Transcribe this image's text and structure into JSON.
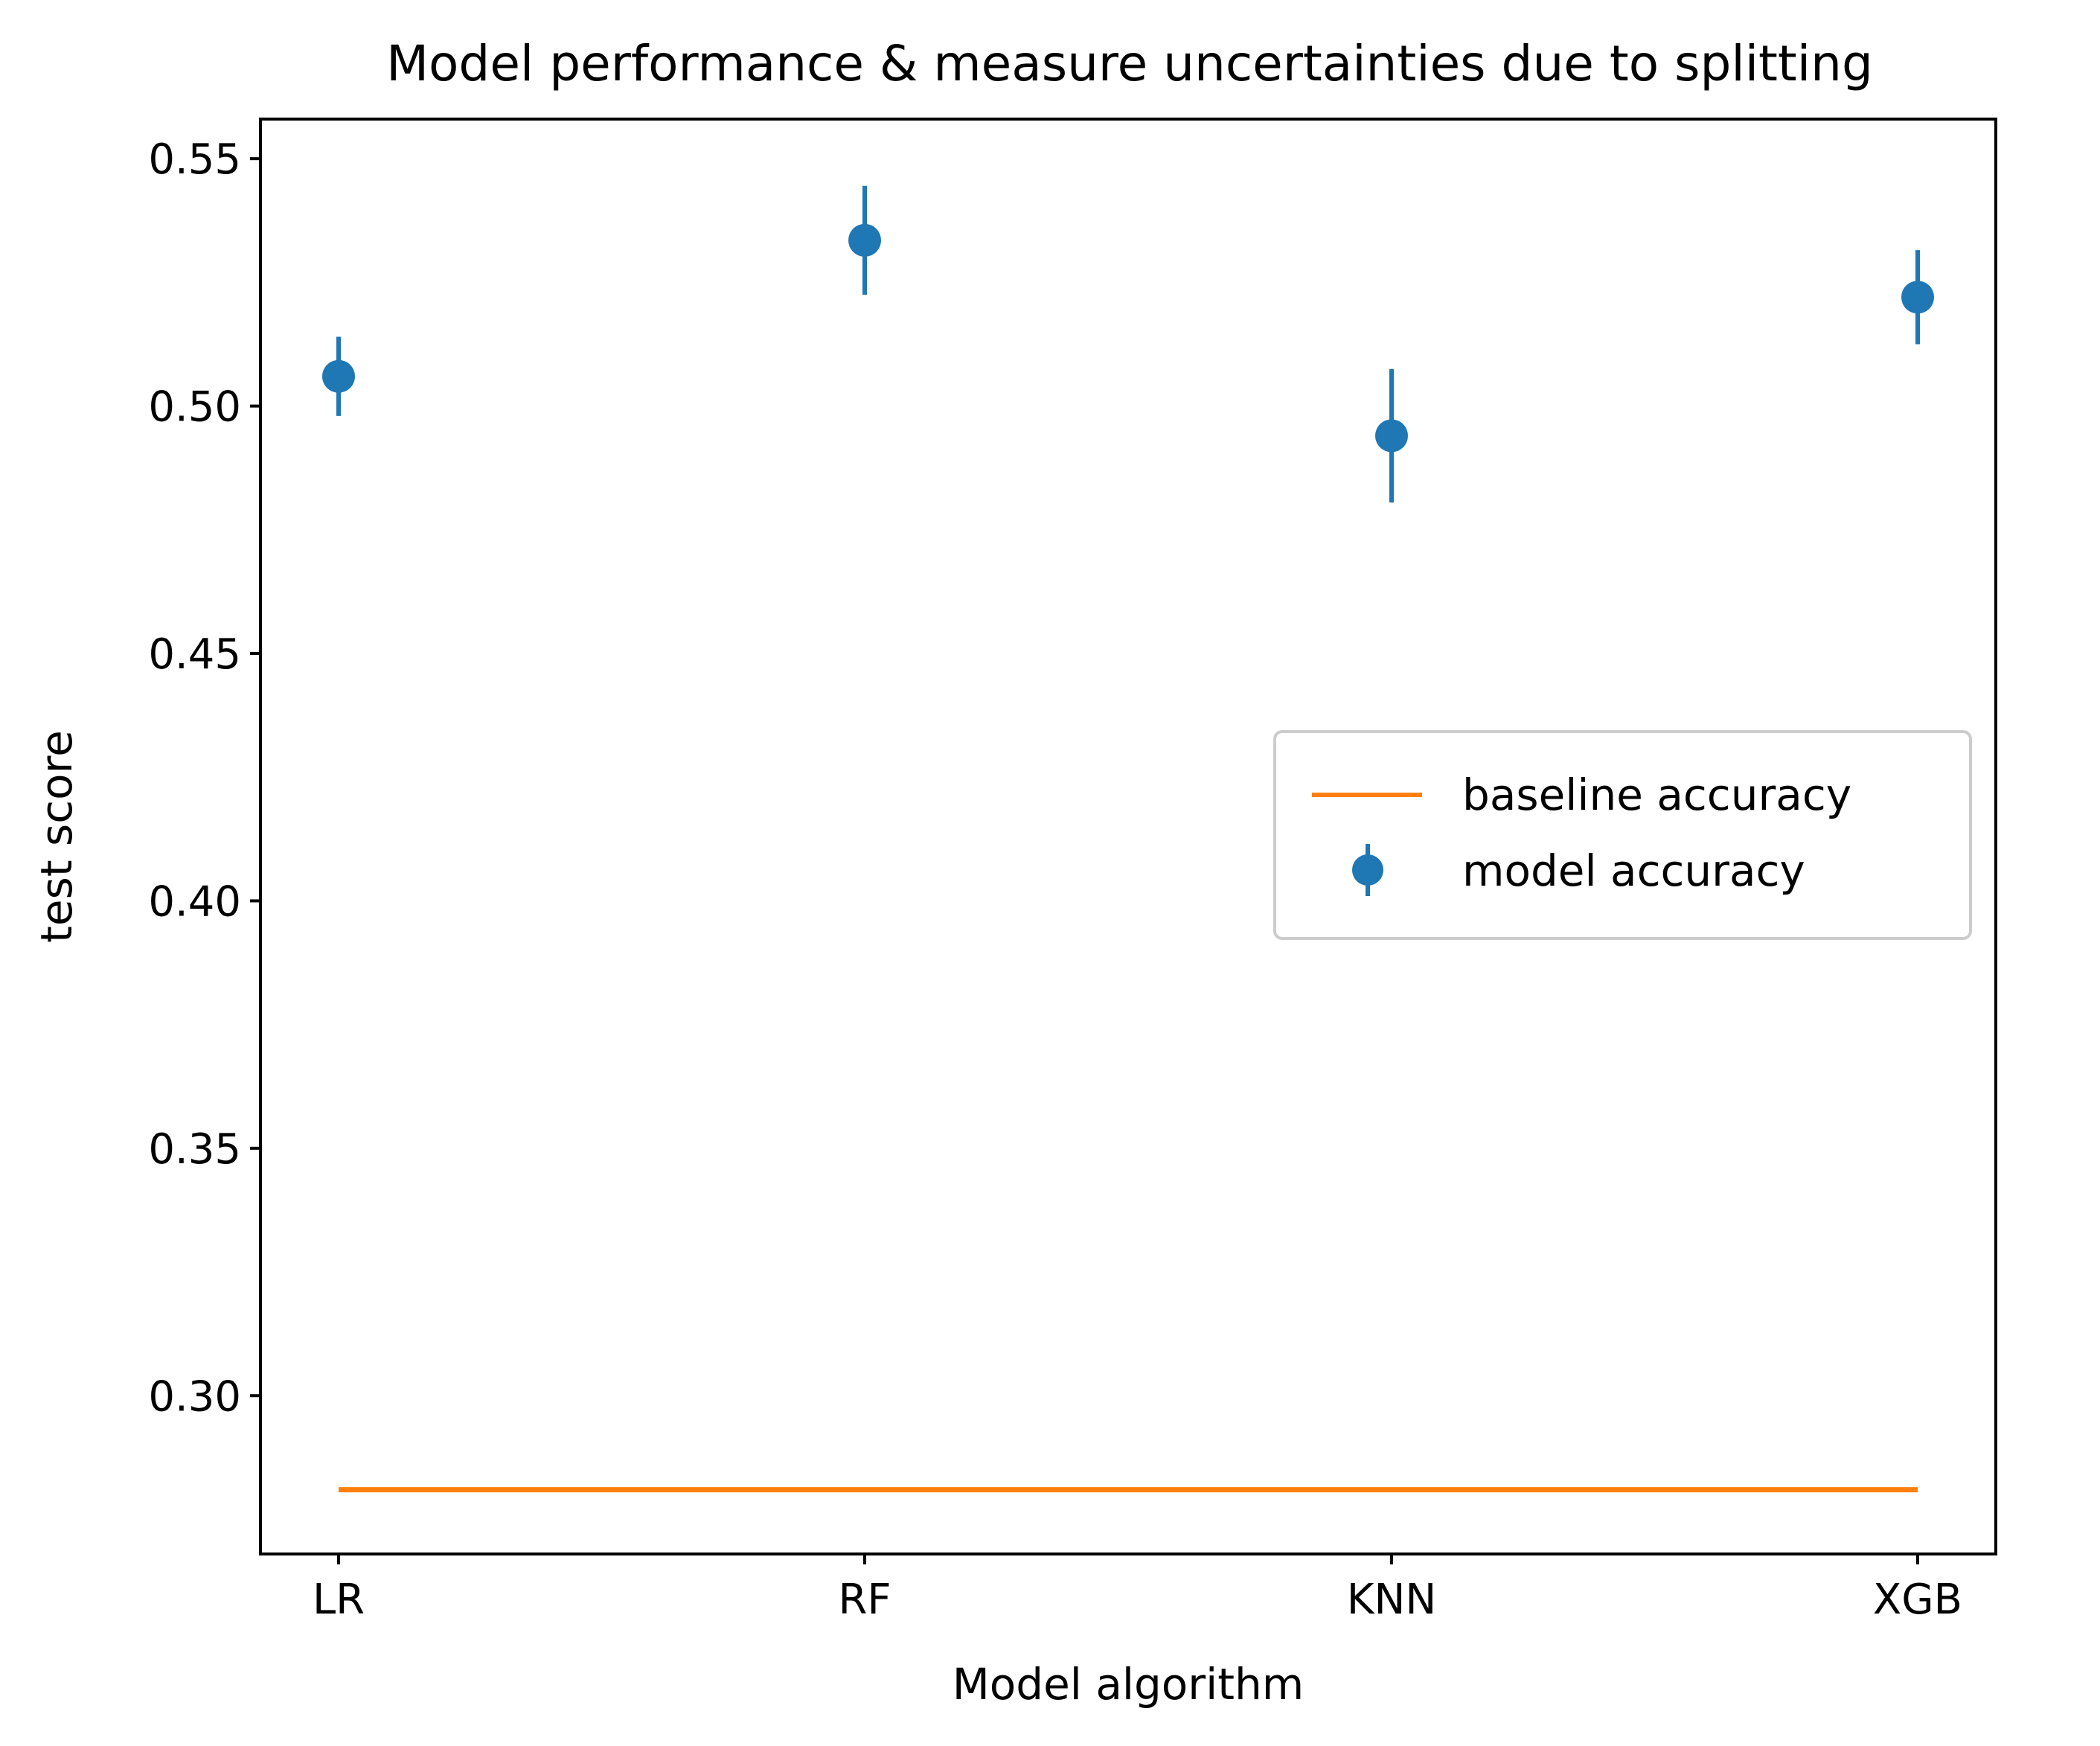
{
  "chart_data": {
    "type": "scatter",
    "title": "Model performance & measure uncertainties due to splitting",
    "xlabel": "Model algorithm",
    "ylabel": "test score",
    "categories": [
      "LR",
      "RF",
      "KNN",
      "XGB"
    ],
    "ylim": [
      0.268,
      0.558
    ],
    "yticks": [
      0.3,
      0.35,
      0.4,
      0.45,
      0.5,
      0.55
    ],
    "ytick_labels": [
      "0.30",
      "0.35",
      "0.40",
      "0.45",
      "0.50",
      "0.55"
    ],
    "grid": false,
    "legend_position": "center-right",
    "series": [
      {
        "name": "baseline accuracy",
        "kind": "line",
        "color": "#ff7f0e",
        "values": [
          0.281,
          0.281,
          0.281,
          0.281
        ]
      },
      {
        "name": "model accuracy",
        "kind": "errorbar",
        "color": "#1f77b4",
        "values": [
          0.506,
          0.5335,
          0.494,
          0.522
        ],
        "errors": [
          0.008,
          0.011,
          0.0135,
          0.0095
        ]
      }
    ]
  }
}
